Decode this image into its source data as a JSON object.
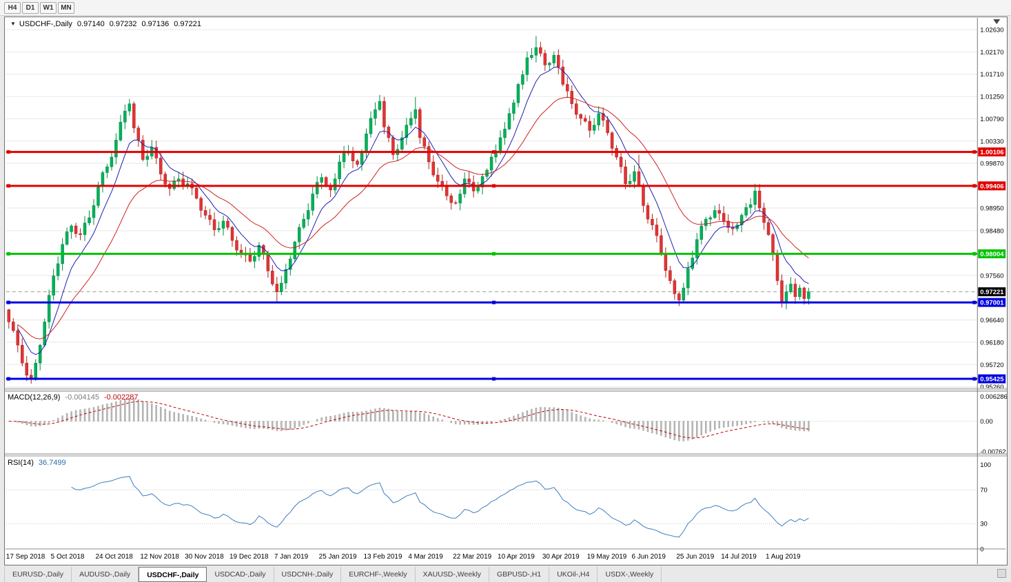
{
  "toolbar": {
    "timeframes": [
      "H4",
      "D1",
      "W1",
      "MN"
    ]
  },
  "icons": {
    "dropdown": "▼",
    "shift_marker": "▼"
  },
  "chart": {
    "symbol_label": "USDCHF-,Daily",
    "ohlc": {
      "open": "0.97140",
      "high": "0.97232",
      "low": "0.97136",
      "close": "0.97221"
    }
  },
  "indicators": {
    "macd": {
      "label": "MACD(12,26,9)",
      "value_main": "-0.004145",
      "value_signal": "-0.002287",
      "axis": [
        "0.006286",
        "0.00",
        "-0.00762"
      ]
    },
    "rsi": {
      "label": "RSI(14)",
      "value": "36.7499",
      "axis": [
        "100",
        "70",
        "30",
        "0"
      ]
    }
  },
  "chart_data": {
    "type": "candlestick",
    "symbol": "USDCHF",
    "timeframe": "Daily",
    "categories": [
      "17 Sep 2018",
      "5 Oct 2018",
      "24 Oct 2018",
      "12 Nov 2018",
      "30 Nov 2018",
      "19 Dec 2018",
      "7 Jan 2019",
      "25 Jan 2019",
      "13 Feb 2019",
      "4 Mar 2019",
      "22 Mar 2019",
      "10 Apr 2019",
      "30 Apr 2019",
      "19 May 2019",
      "6 Jun 2019",
      "25 Jun 2019",
      "14 Jul 2019",
      "1 Aug 2019"
    ],
    "tick_every": 10,
    "first_open": 0.9685,
    "closes": [
      0.966,
      0.9642,
      0.9612,
      0.9575,
      0.955,
      0.9545,
      0.9575,
      0.9612,
      0.966,
      0.9715,
      0.9755,
      0.978,
      0.982,
      0.9846,
      0.9858,
      0.9842,
      0.984,
      0.9864,
      0.9875,
      0.99,
      0.994,
      0.9968,
      0.998,
      1.0,
      1.0035,
      1.0072,
      1.0095,
      1.011,
      1.006,
      1.0035,
      0.9995,
      1.0002,
      1.002,
      0.9998,
      0.9965,
      0.9944,
      0.9935,
      0.9951,
      0.9955,
      0.9943,
      0.9945,
      0.9936,
      0.9915,
      0.989,
      0.988,
      0.9871,
      0.985,
      0.9853,
      0.9868,
      0.9855,
      0.9828,
      0.9808,
      0.98,
      0.9798,
      0.9785,
      0.9795,
      0.9818,
      0.9799,
      0.9765,
      0.9738,
      0.9722,
      0.974,
      0.9768,
      0.979,
      0.9825,
      0.9855,
      0.9872,
      0.989,
      0.9924,
      0.9948,
      0.9958,
      0.994,
      0.9932,
      0.9955,
      0.999,
      1.0008,
      1.0012,
      0.9992,
      0.9985,
      1.001,
      1.0048,
      1.008,
      1.0098,
      1.0115,
      1.0062,
      1.004,
      1.0005,
      1.0016,
      1.004,
      1.0066,
      1.008,
      1.0098,
      1.004,
      1.0022,
      0.999,
      0.9963,
      0.995,
      0.9941,
      0.992,
      0.9906,
      0.9905,
      0.9924,
      0.9955,
      0.9948,
      0.993,
      0.9938,
      0.996,
      0.9973,
      1.0,
      1.0013,
      1.004,
      1.0058,
      1.009,
      1.0112,
      1.015,
      1.017,
      1.0205,
      1.021,
      1.0226,
      1.0214,
      1.019,
      1.0194,
      1.021,
      1.0186,
      1.015,
      1.0136,
      1.011,
      1.0088,
      1.008,
      1.0074,
      1.0055,
      1.0066,
      1.009,
      1.0076,
      1.005,
      1.0018,
      1.0,
      0.998,
      0.9945,
      0.995,
      0.997,
      0.9942,
      0.99,
      0.9872,
      0.986,
      0.9838,
      0.98,
      0.9766,
      0.9745,
      0.9718,
      0.9705,
      0.973,
      0.977,
      0.9792,
      0.983,
      0.9858,
      0.9872,
      0.9875,
      0.989,
      0.9884,
      0.9868,
      0.9855,
      0.9852,
      0.986,
      0.988,
      0.9896,
      0.9902,
      0.993,
      0.9895,
      0.9865,
      0.984,
      0.98,
      0.9745,
      0.97,
      0.9722,
      0.9738,
      0.9712,
      0.973,
      0.9708,
      0.97221
    ],
    "wick_overrides": {
      "5": {
        "low": 0.9542
      },
      "60": {
        "low": 0.97
      },
      "83": {
        "high": 1.0124
      },
      "91": {
        "high": 1.0124
      },
      "118": {
        "high": 1.025
      },
      "141": {
        "high": 1.0005
      },
      "150": {
        "low": 0.9694
      },
      "173": {
        "low": 0.9694
      }
    },
    "ylim": [
      0.9526,
      1.028
    ],
    "price_axis_labels": [
      "1.02630",
      "1.02170",
      "1.01710",
      "1.01250",
      "1.00790",
      "1.00330",
      "0.99870",
      "0.98950",
      "0.98480",
      "0.97560",
      "0.96640",
      "0.96180",
      "0.95720",
      "0.95260"
    ],
    "moving_averages": [
      {
        "type": "ema",
        "period": 8,
        "color": "#1d1db8"
      },
      {
        "type": "ema",
        "period": 22,
        "color": "#cf2020"
      }
    ],
    "levels": [
      {
        "price": 1.00106,
        "label": "1.00106",
        "color": "#e00000",
        "width": 3
      },
      {
        "price": 0.99406,
        "label": "0.99406",
        "color": "#e00000",
        "width": 3
      },
      {
        "price": 0.98004,
        "label": "0.98004",
        "color": "#00c400",
        "width": 3
      },
      {
        "price": 0.97001,
        "label": "0.97001",
        "color": "#0000e0",
        "width": 3
      },
      {
        "price": 0.95425,
        "label": "0.95425",
        "color": "#0000e0",
        "width": 3
      }
    ],
    "current_price": {
      "value": 0.97221,
      "label": "0.97221",
      "tag_color": "#000000"
    },
    "macd": {
      "fast": 12,
      "slow": 26,
      "signal": 9,
      "scale_max": 0.006286,
      "scale_min": -0.00762,
      "histogram_color": "#bdbdbd",
      "histogram_border": "#8c8c8c",
      "signal_color": "#c00000"
    },
    "rsi": {
      "period": 14,
      "levels": [
        70,
        30
      ],
      "color": "#3c7dbf",
      "scale": [
        0,
        100
      ]
    },
    "colors": {
      "up": "#00b05a",
      "up_border": "#008a42",
      "down": "#e23333",
      "down_border": "#aa1f1f",
      "grid": "#e7e7e7",
      "axis_text": "#000000",
      "bid_line": "#9a9a9a"
    }
  },
  "tabs": [
    {
      "label": "EURUSD-,Daily",
      "active": false
    },
    {
      "label": "AUDUSD-,Daily",
      "active": false
    },
    {
      "label": "USDCHF-,Daily",
      "active": true
    },
    {
      "label": "USDCAD-,Daily",
      "active": false
    },
    {
      "label": "USDCNH-,Daily",
      "active": false
    },
    {
      "label": "EURCHF-,Weekly",
      "active": false
    },
    {
      "label": "XAUUSD-,Weekly",
      "active": false
    },
    {
      "label": "GBPUSD-,H1",
      "active": false
    },
    {
      "label": "UKOil-,H4",
      "active": false
    },
    {
      "label": "USDX-,Weekly",
      "active": false
    }
  ]
}
